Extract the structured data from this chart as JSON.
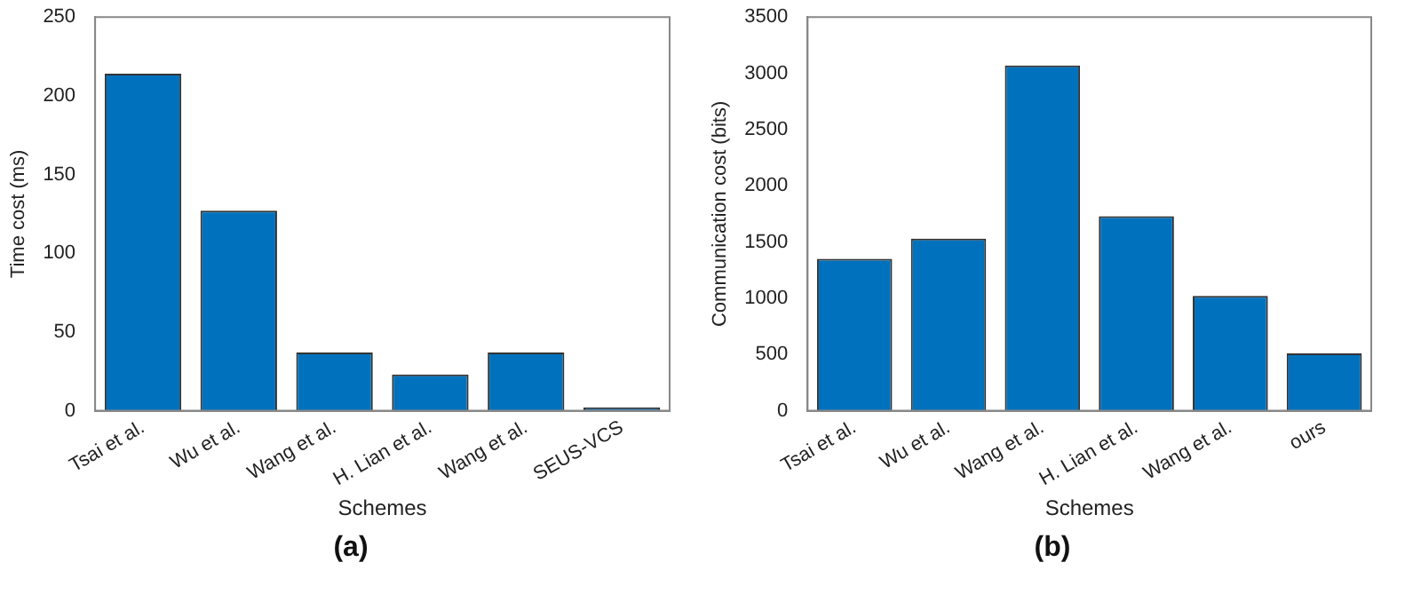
{
  "chart_data": [
    {
      "type": "bar",
      "categories": [
        "Tsai et al.",
        "Wu et al.",
        "Wang et al.",
        "H. Lian et al.",
        "Wang et al.",
        "SEUS-VCS"
      ],
      "series": [
        {
          "color": "#0072bd",
          "values": [
            214,
            127,
            37,
            23,
            37,
            2
          ]
        }
      ],
      "xlabel": "Schemes",
      "ylabel": "Time cost (ms)",
      "ylim": [
        0,
        250
      ],
      "yticks": [
        0,
        50,
        100,
        150,
        200,
        250
      ],
      "grid": false,
      "legend": false,
      "annotations": [
        "(a)"
      ]
    },
    {
      "type": "bar",
      "categories": [
        "Tsai et al.",
        "Wu et al.",
        "Wang et al.",
        "H. Lian et al.",
        "Wang et al.",
        "ours"
      ],
      "series": [
        {
          "color": "#0072bd",
          "values": [
            1350,
            1530,
            3070,
            1730,
            1020,
            510
          ]
        }
      ],
      "xlabel": "Schemes",
      "ylabel": "Communication cost (bits)",
      "ylim": [
        0,
        3500
      ],
      "yticks": [
        0,
        500,
        1000,
        1500,
        2000,
        2500,
        3000,
        3500
      ],
      "grid": false,
      "legend": false,
      "annotations": [
        "(b)"
      ]
    }
  ]
}
